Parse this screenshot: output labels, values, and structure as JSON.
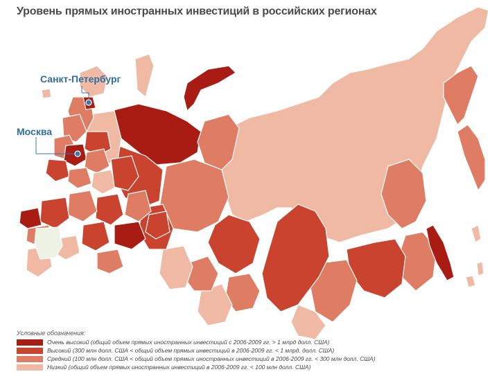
{
  "title": "Уровень прямых иностранных инвестиций в российских регионах",
  "cities": {
    "spb": "Санкт-Петербург",
    "moscow": "Москва"
  },
  "legend": {
    "title": "Условные обозначения:",
    "items": [
      {
        "label": "Очень высокий (общий объем прямых иностранных инвестиций с 2006-2009 гг. > 1 млрд долл. США)",
        "color": "#a81c14"
      },
      {
        "label": "Высокий (300 млн долл. США < общий объем прямых инвестиций в 2006-2009 гг. < 1 млрд. долл. США)",
        "color": "#c9432e"
      },
      {
        "label": "Средний (100 млн долл. США < общий объем прямых иностранных инвестиций в 2006-2009 гг. < 300 млн долл. США)",
        "color": "#df7c64"
      },
      {
        "label": "Низкий (общий объем прямых иностранных инвестиций в 2006-2009 гг. < 100 млн долл. США)",
        "color": "#f0b9a3"
      }
    ]
  },
  "colors": {
    "very_high": "#a81c14",
    "high": "#c9432e",
    "medium": "#df7c64",
    "low": "#f0b9a3",
    "no_data": "#eef2e4",
    "marker": "#2e7bb5",
    "border": "#ffffff"
  }
}
